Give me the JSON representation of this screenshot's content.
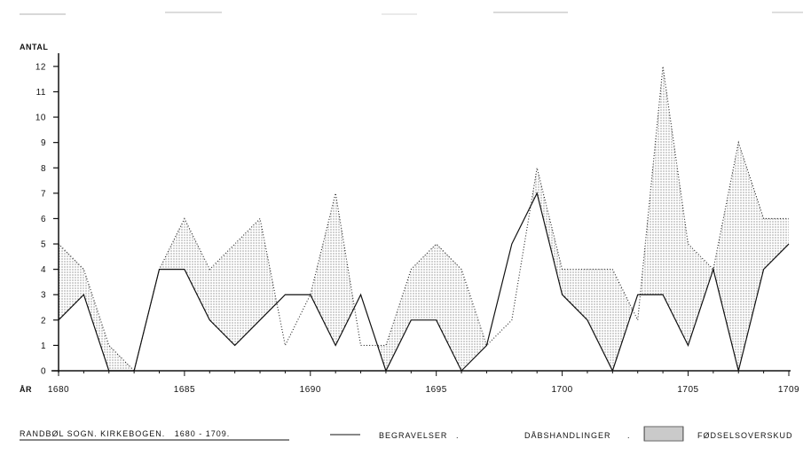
{
  "chart_data": {
    "type": "area",
    "title": "RANDBØL SOGN. KIRKEBOGEN.   1680 - 1709.",
    "ylabel": "ANTAL",
    "xlabel": "ÅR",
    "x": [
      1680,
      1681,
      1682,
      1683,
      1684,
      1685,
      1686,
      1687,
      1688,
      1689,
      1690,
      1691,
      1692,
      1693,
      1694,
      1695,
      1696,
      1697,
      1698,
      1699,
      1700,
      1701,
      1702,
      1703,
      1704,
      1705,
      1706,
      1707,
      1708,
      1709
    ],
    "x_ticks": [
      1680,
      1685,
      1690,
      1695,
      1700,
      1705,
      1709
    ],
    "y_ticks": [
      0,
      1,
      2,
      3,
      4,
      5,
      6,
      7,
      8,
      9,
      10,
      11,
      12
    ],
    "ylim": [
      0,
      12.8
    ],
    "xlim": [
      1680,
      1709
    ],
    "grid": false,
    "series": [
      {
        "name": "BEGRAVELSER",
        "style": "solid-line",
        "values": [
          2,
          3,
          0,
          0,
          4,
          4,
          2,
          1,
          2,
          3,
          3,
          1,
          3,
          0,
          2,
          2,
          0,
          1,
          5,
          7,
          3,
          2,
          0,
          3,
          3,
          1,
          4,
          0,
          4,
          5
        ]
      },
      {
        "name": "DÅBSHANDLINGER",
        "style": "dotted-line",
        "values": [
          5,
          4,
          1,
          0,
          4,
          6,
          4,
          5,
          6,
          1,
          3,
          7,
          1,
          1,
          4,
          5,
          4,
          1,
          2,
          8,
          4,
          4,
          4,
          2,
          12,
          5,
          4,
          9,
          6,
          6
        ]
      }
    ],
    "fill_label": "FØDSELSOVERSKUD",
    "colors": {
      "line": "#111111",
      "dots": "#333333",
      "background": "#ffffff"
    }
  }
}
